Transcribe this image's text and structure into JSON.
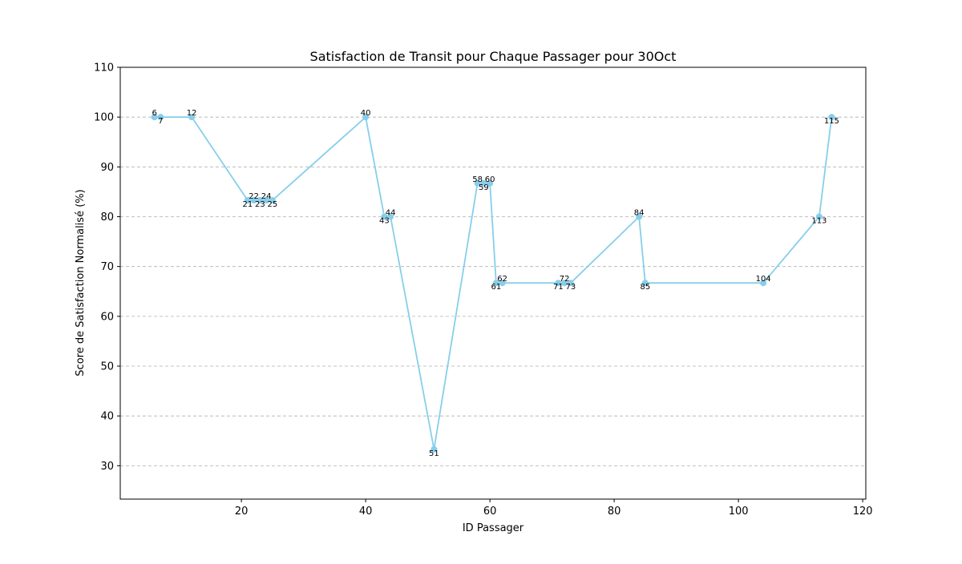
{
  "chart_data": {
    "type": "line",
    "title": "Satisfaction de Transit pour Chaque Passager pour 30Oct",
    "xlabel": "ID Passager",
    "ylabel": "Score de Satisfaction Normalisé (%)",
    "xlim": [
      0.5,
      120.5
    ],
    "ylim": [
      23.3,
      110
    ],
    "x_ticks": [
      20,
      40,
      60,
      80,
      100,
      120
    ],
    "y_ticks": [
      30,
      40,
      50,
      60,
      70,
      80,
      90,
      100,
      110
    ],
    "grid": {
      "y": true,
      "x": false,
      "style": "dashed"
    },
    "series": [
      {
        "color": "#87ceeb",
        "marker": "circle",
        "points": [
          {
            "x": 6,
            "y": 100,
            "label": "6",
            "label_pos": "above"
          },
          {
            "x": 7,
            "y": 100,
            "label": "7",
            "label_pos": "below"
          },
          {
            "x": 12,
            "y": 100,
            "label": "12",
            "label_pos": "above"
          },
          {
            "x": 21,
            "y": 83.3,
            "label": "21",
            "label_pos": "below"
          },
          {
            "x": 22,
            "y": 83.3,
            "label": "22",
            "label_pos": "above"
          },
          {
            "x": 23,
            "y": 83.3,
            "label": "23",
            "label_pos": "below"
          },
          {
            "x": 24,
            "y": 83.3,
            "label": "24",
            "label_pos": "above"
          },
          {
            "x": 25,
            "y": 83.3,
            "label": "25",
            "label_pos": "below"
          },
          {
            "x": 40,
            "y": 100,
            "label": "40",
            "label_pos": "above"
          },
          {
            "x": 43,
            "y": 80,
            "label": "43",
            "label_pos": "below"
          },
          {
            "x": 44,
            "y": 80,
            "label": "44",
            "label_pos": "above"
          },
          {
            "x": 51,
            "y": 33.3,
            "label": "51",
            "label_pos": "below"
          },
          {
            "x": 58,
            "y": 86.7,
            "label": "58",
            "label_pos": "above"
          },
          {
            "x": 59,
            "y": 86.7,
            "label": "59",
            "label_pos": "below"
          },
          {
            "x": 60,
            "y": 86.7,
            "label": "60",
            "label_pos": "above"
          },
          {
            "x": 61,
            "y": 66.7,
            "label": "61",
            "label_pos": "below"
          },
          {
            "x": 62,
            "y": 66.7,
            "label": "62",
            "label_pos": "above"
          },
          {
            "x": 71,
            "y": 66.7,
            "label": "71",
            "label_pos": "below"
          },
          {
            "x": 72,
            "y": 66.7,
            "label": "72",
            "label_pos": "above"
          },
          {
            "x": 73,
            "y": 66.7,
            "label": "73",
            "label_pos": "below"
          },
          {
            "x": 84,
            "y": 80,
            "label": "84",
            "label_pos": "above"
          },
          {
            "x": 85,
            "y": 66.7,
            "label": "85",
            "label_pos": "below"
          },
          {
            "x": 104,
            "y": 66.7,
            "label": "104",
            "label_pos": "above"
          },
          {
            "x": 113,
            "y": 80,
            "label": "113",
            "label_pos": "below"
          },
          {
            "x": 115,
            "y": 100,
            "label": "115",
            "label_pos": "below"
          }
        ]
      }
    ]
  }
}
